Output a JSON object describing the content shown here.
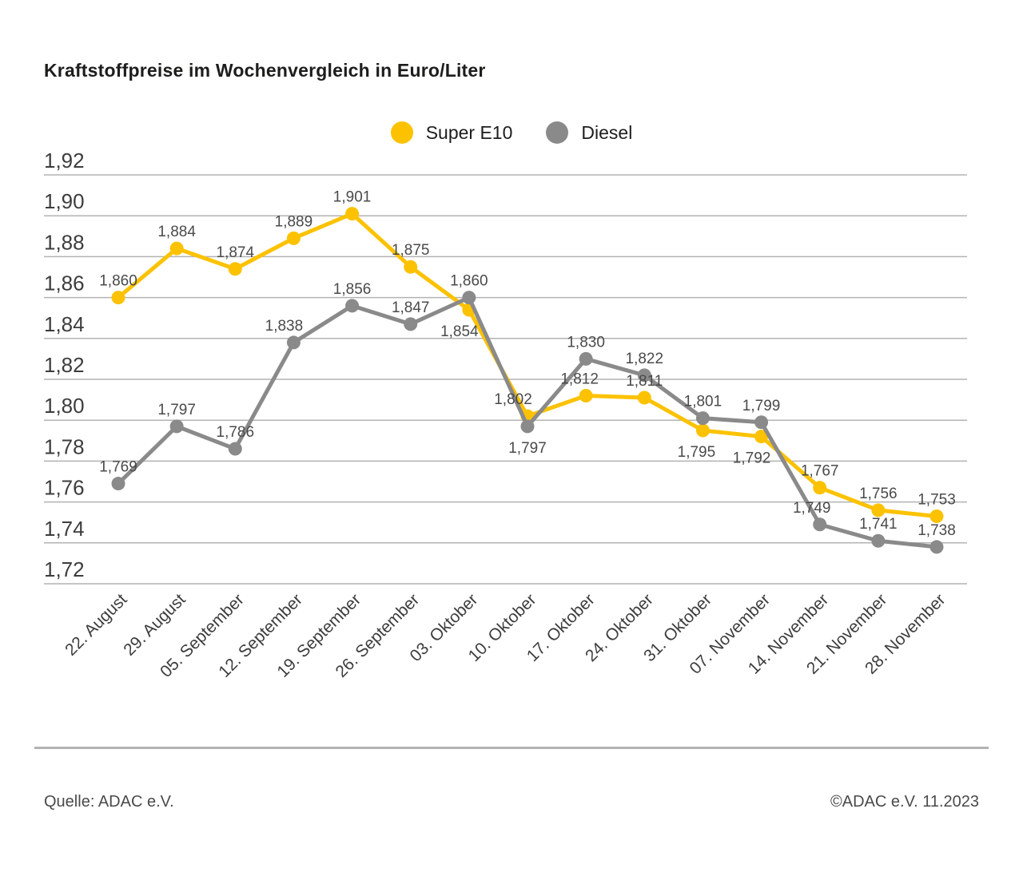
{
  "title": "Kraftstoffpreise im Wochenvergleich in Euro/Liter",
  "footer": {
    "source": "Quelle: ADAC e.V.",
    "copyright": "©ADAC e.V. 11.2023"
  },
  "colors": {
    "super_e10": "#FCC200",
    "diesel": "#8A8A8A",
    "grid": "#b3b3b3",
    "axis_text": "#3d3d3d",
    "data_label_text": "#4a4a4a"
  },
  "chart_data": {
    "type": "line",
    "title": "Kraftstoffpreise im Wochenvergleich in Euro/Liter",
    "unit": "Euro/Liter",
    "categories": [
      "22. August",
      "29. August",
      "05. September",
      "12. September",
      "19. September",
      "26. September",
      "03. Oktober",
      "10. Oktober",
      "17. Oktober",
      "24. Oktober",
      "31. Oktober",
      "07. November",
      "14. November",
      "21. November",
      "28. November"
    ],
    "series": [
      {
        "name": "Super E10",
        "color": "#FCC200",
        "values": [
          1.86,
          1.884,
          1.874,
          1.889,
          1.901,
          1.875,
          1.854,
          1.802,
          1.812,
          1.811,
          1.795,
          1.792,
          1.767,
          1.756,
          1.753
        ],
        "labels": [
          "1,860",
          "1,884",
          "1,874",
          "1,889",
          "1,901",
          "1,875",
          "1,854",
          "1,802",
          "1,812",
          "1,811",
          "1,795",
          "1,792",
          "1,767",
          "1,756",
          "1,753"
        ],
        "label_pos": [
          "above",
          "above",
          "above",
          "above",
          "above",
          "above",
          "below",
          "above",
          "above",
          "above",
          "below",
          "below",
          "above",
          "above",
          "above"
        ]
      },
      {
        "name": "Diesel",
        "color": "#8A8A8A",
        "values": [
          1.769,
          1.797,
          1.786,
          1.838,
          1.856,
          1.847,
          1.86,
          1.797,
          1.83,
          1.822,
          1.801,
          1.799,
          1.749,
          1.741,
          1.738
        ],
        "labels": [
          "1,769",
          "1,797",
          "1,786",
          "1,838",
          "1,856",
          "1,847",
          "1,860",
          "1,797",
          "1,830",
          "1,822",
          "1,801",
          "1,799",
          "1,749",
          "1,741",
          "1,738"
        ],
        "label_pos": [
          "above",
          "above",
          "above",
          "above",
          "above",
          "above",
          "above",
          "below",
          "above",
          "above",
          "above",
          "above",
          "above",
          "above",
          "above"
        ]
      }
    ],
    "ylim": [
      1.72,
      1.92
    ],
    "ytick_step": 0.02,
    "ytick_labels": [
      "1,92",
      "1,90",
      "1,88",
      "1,86",
      "1,84",
      "1,82",
      "1,80",
      "1,78",
      "1,76",
      "1,74",
      "1,72"
    ],
    "grid": true,
    "legend_position": "top-center",
    "decimal_separator": ","
  }
}
